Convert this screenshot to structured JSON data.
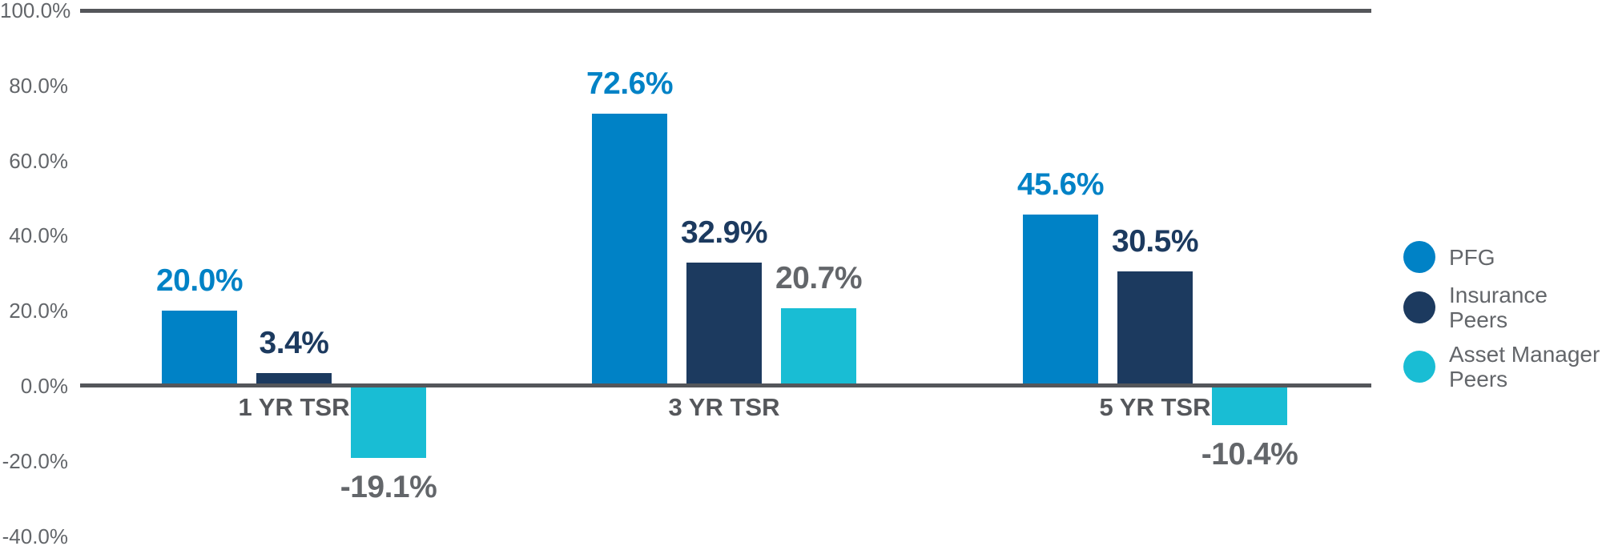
{
  "chart_data": {
    "type": "bar",
    "title": "",
    "xlabel": "",
    "ylabel": "",
    "ylim": [
      -40,
      100
    ],
    "grid": "top-and-zero-lines-only",
    "legend_position": "right",
    "categories": [
      "1 YR TSR",
      "3 YR TSR",
      "5 YR TSR"
    ],
    "series": [
      {
        "name": "PFG",
        "color": "#0082C6",
        "label_color": "#0082C6",
        "values": [
          20.0,
          72.6,
          45.6
        ],
        "labels": [
          "20.0%",
          "72.6%",
          "45.6%"
        ]
      },
      {
        "name": "Insurance Peers",
        "color": "#1C3A5F",
        "label_color": "#1C3A5F",
        "values": [
          3.4,
          32.9,
          30.5
        ],
        "labels": [
          "3.4%",
          "32.9%",
          "30.5%"
        ]
      },
      {
        "name": "Asset Manager Peers",
        "color": "#19BDD4",
        "label_color": "#63666A",
        "values": [
          -19.1,
          20.7,
          -10.4
        ],
        "labels": [
          "-19.1%",
          "20.7%",
          "-10.4%"
        ]
      }
    ],
    "y_axis": {
      "ticks": [
        {
          "value": 100,
          "label": "100.0%"
        },
        {
          "value": 80,
          "label": "80.0%"
        },
        {
          "value": 60,
          "label": "60.0%"
        },
        {
          "value": 40,
          "label": "40.0%"
        },
        {
          "value": 20,
          "label": "20.0%"
        },
        {
          "value": 0,
          "label": "0.0%"
        },
        {
          "value": -20,
          "label": "-20.0%"
        },
        {
          "value": -40,
          "label": "-40.0%"
        }
      ]
    },
    "legend": [
      {
        "series": "PFG",
        "lines": [
          "PFG"
        ],
        "color": "#0082C6"
      },
      {
        "series": "Insurance Peers",
        "lines": [
          "Insurance",
          "Peers"
        ],
        "color": "#1C3A5F"
      },
      {
        "series": "Asset Manager Peers",
        "lines": [
          "Asset Manager",
          "Peers"
        ],
        "color": "#19BDD4"
      }
    ],
    "colors": {
      "axis_line": "#54565A",
      "tick_text": "#63666A",
      "category_text": "#55575B",
      "legend_text": "#63666A",
      "background": "#FFFFFF"
    }
  }
}
